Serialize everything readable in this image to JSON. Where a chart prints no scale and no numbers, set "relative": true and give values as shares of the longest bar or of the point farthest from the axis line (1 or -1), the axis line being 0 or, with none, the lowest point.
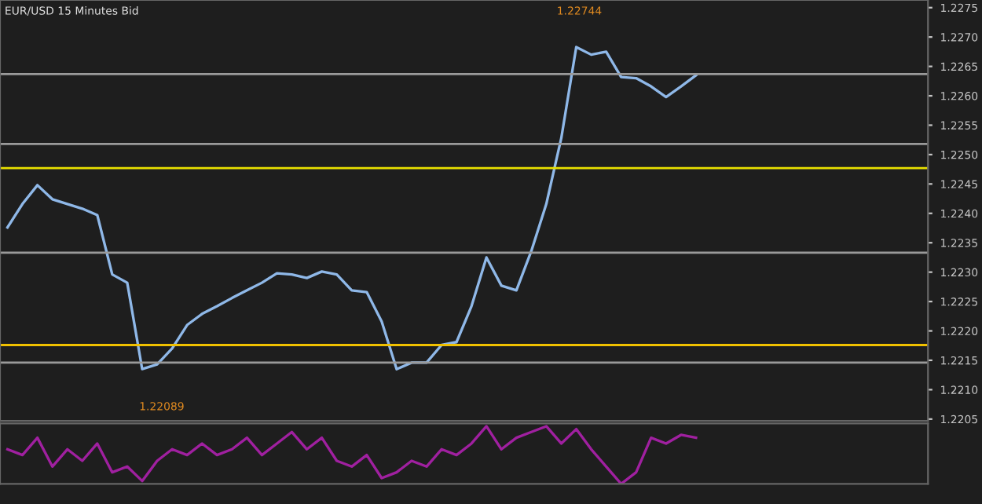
{
  "chart_data": [
    {
      "type": "line",
      "title": "EUR/USD 15 Minutes Bid",
      "categories": [
        null,
        null,
        null,
        null,
        null,
        null,
        null,
        null,
        null,
        null,
        null,
        null,
        null,
        null,
        null,
        null,
        null,
        null,
        null,
        null,
        null,
        null,
        null,
        null,
        null,
        null,
        null,
        null,
        null,
        null,
        null,
        null,
        null,
        null,
        null,
        null,
        null,
        null,
        null,
        null,
        null,
        null,
        null,
        null,
        null,
        null,
        null,
        null,
        null,
        null,
        null,
        null,
        null,
        null,
        null,
        null,
        null,
        null,
        null,
        null,
        null,
        null
      ],
      "series": [
        {
          "color": "#8fb8e8",
          "values": [
            1.22376,
            1.22416,
            1.22448,
            1.22424,
            1.22416,
            1.22408,
            1.22397,
            1.22296,
            1.22282,
            1.22135,
            1.22143,
            1.2217,
            1.2221,
            1.22229,
            1.22242,
            1.22256,
            1.22269,
            1.22282,
            1.22298,
            1.22296,
            1.2229,
            1.22301,
            1.22296,
            1.22269,
            1.22266,
            1.22216,
            1.22135,
            1.22146,
            1.22146,
            1.22176,
            1.22181,
            1.22242,
            1.22325,
            1.22277,
            1.22269,
            1.22336,
            1.22416,
            1.22528,
            1.22683,
            1.2267,
            1.22675,
            1.22632,
            1.2263,
            1.22616,
            1.22598,
            1.22616,
            1.22635,
            null,
            null,
            null,
            null,
            null,
            null,
            null,
            null,
            null,
            null,
            null,
            null,
            null,
            null,
            null
          ]
        }
      ],
      "ylim": [
        1.22047,
        1.22763
      ],
      "yticks": [
        1.2205,
        {
          "value": 1.221,
          "label": "1.2210"
        },
        1.2215,
        {
          "value": 1.222,
          "label": "1.2220"
        },
        1.2225,
        {
          "value": 1.223,
          "label": "1.2230"
        },
        1.2235,
        {
          "value": 1.224,
          "label": "1.2240"
        },
        1.2245,
        {
          "value": 1.225,
          "label": "1.2250"
        },
        1.2255,
        {
          "value": 1.226,
          "label": "1.2260"
        },
        1.2265,
        {
          "value": 1.227,
          "label": "1.2270"
        },
        1.2275
      ],
      "ref_lines": [
        {
          "axis": "y",
          "value": 1.22637,
          "color": "#9a9a9a"
        },
        {
          "axis": "y",
          "value": 1.22518,
          "color": "#9a9a9a"
        },
        {
          "axis": "y",
          "value": 1.22477,
          "color": "#e8e000"
        },
        {
          "axis": "y",
          "value": 1.22333,
          "color": "#9a9a9a"
        },
        {
          "axis": "y",
          "value": 1.22176,
          "color": "#f0c000"
        },
        {
          "axis": "y",
          "value": 1.22146,
          "color": "#9a9a9a"
        }
      ],
      "annotations": [
        "1.22744",
        "1.22089"
      ],
      "tick_labels": "y",
      "grid": false,
      "legend": false
    },
    {
      "type": "line",
      "relative": true,
      "categories": [
        null,
        null,
        null,
        null,
        null,
        null,
        null,
        null,
        null,
        null,
        null,
        null,
        null,
        null,
        null,
        null,
        null,
        null,
        null,
        null,
        null,
        null,
        null,
        null,
        null,
        null,
        null,
        null,
        null,
        null,
        null,
        null,
        null,
        null,
        null,
        null,
        null,
        null,
        null,
        null,
        null,
        null,
        null,
        null,
        null,
        null,
        null,
        null,
        null,
        null,
        null,
        null,
        null,
        null,
        null,
        null,
        null,
        null,
        null,
        null,
        null,
        null
      ],
      "series": [
        {
          "color": "#a020a0",
          "values": [
            0.6,
            0.5,
            0.8,
            0.3,
            0.6,
            0.4,
            0.7,
            0.2,
            0.3,
            0.05,
            0.4,
            0.6,
            0.5,
            0.7,
            0.5,
            0.6,
            0.8,
            0.5,
            0.7,
            0.9,
            0.6,
            0.8,
            0.4,
            0.3,
            0.5,
            0.1,
            0.2,
            0.4,
            0.3,
            0.6,
            0.5,
            0.7,
            1.0,
            0.6,
            0.8,
            0.9,
            1.0,
            0.7,
            0.95,
            0.6,
            0.3,
            0.0,
            0.2,
            0.8,
            0.7,
            0.85,
            0.8,
            null,
            null,
            null,
            null,
            null,
            null,
            null,
            null,
            null,
            null,
            null,
            null,
            null,
            null,
            null
          ]
        }
      ],
      "tick_labels": false,
      "grid": false,
      "legend": false
    }
  ]
}
